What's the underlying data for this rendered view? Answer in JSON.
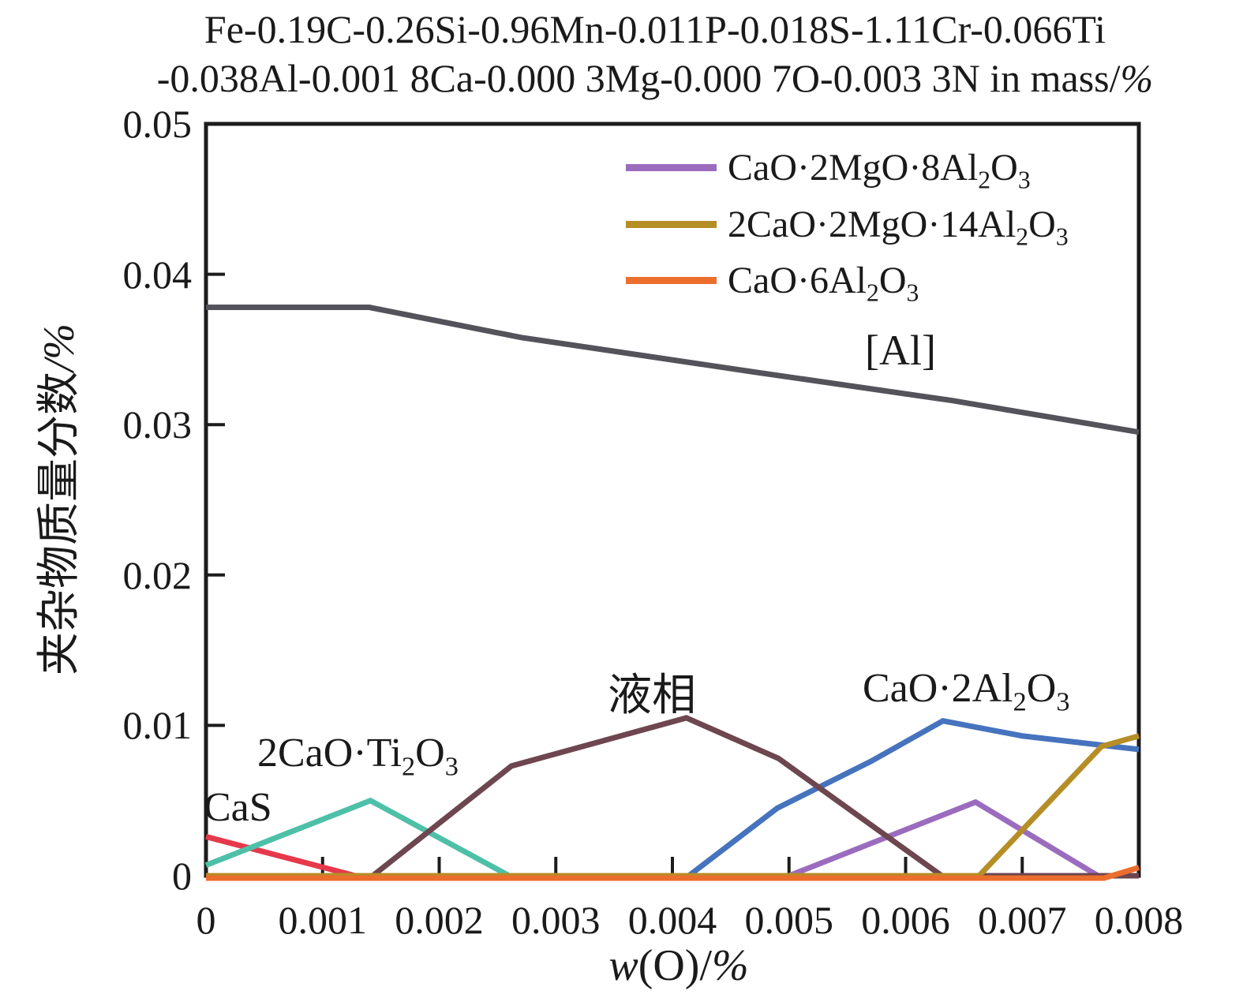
{
  "title": {
    "line1": "Fe-0.19C-0.26Si-0.96Mn-0.011P-0.018S-1.11Cr-0.066Ti",
    "line2_main": "-0.038Al-0.001 8Ca-0.000 3Mg-0.000 7O-0.003 3N in mass/",
    "line2_pct": "%"
  },
  "axes": {
    "xlabel_w": "w",
    "xlabel_mid": "(O)/",
    "xlabel_pct": "%",
    "ylabel_main": "夹杂物质量分数",
    "ylabel_suffix": "/%",
    "xticks": [
      "0",
      "0.001",
      "0.002",
      "0.003",
      "0.004",
      "0.005",
      "0.006",
      "0.007",
      "0.008"
    ],
    "yticks": [
      "0",
      "0.01",
      "0.02",
      "0.03",
      "0.04",
      "0.05"
    ]
  },
  "legend": [
    {
      "label": "CaO·2MgO·8Al_2O_3",
      "color": "#9b6cbe"
    },
    {
      "label": "2CaO·2MgO·14Al_2O_3",
      "color": "#b68e26"
    },
    {
      "label": "CaO·6Al_2O_3",
      "color": "#eb6e2d"
    }
  ],
  "chart_data": {
    "type": "line",
    "title": "Fe-0.19C-0.26Si-0.96Mn-0.011P-0.018S-1.11Cr-0.066Ti-0.038Al-0.001 8Ca-0.000 3Mg-0.000 7O-0.003 3N in mass/%",
    "xlabel": "w(O)/%",
    "ylabel": "夹杂物质量分数/%",
    "xlim": [
      0,
      0.008
    ],
    "ylim": [
      0,
      0.05
    ],
    "grid": false,
    "legend_position": "upper right inside",
    "frame_color": "#1c1c1c",
    "series": [
      {
        "name": "CaO·2MgO·8Al_2O_3",
        "color": "#9b6cbe",
        "points": [
          [
            0,
            0
          ],
          [
            0.005,
            0
          ],
          [
            0.0066,
            0.0049
          ],
          [
            0.00765,
            0
          ],
          [
            0.008,
            0
          ]
        ]
      },
      {
        "name": "CaS",
        "color": "#e6394b",
        "points": [
          [
            0,
            0.0026
          ],
          [
            0.00128,
            0
          ],
          [
            0.008,
            0
          ]
        ]
      },
      {
        "name": "2CaO·Ti_2O_3",
        "color": "#4ec0a8",
        "points": [
          [
            0,
            0.0007
          ],
          [
            0.00141,
            0.005
          ],
          [
            0.0026,
            0
          ],
          [
            0.008,
            0
          ]
        ]
      },
      {
        "name": "CaO·2Al_2O_3",
        "color": "#4673bd",
        "points": [
          [
            0,
            0
          ],
          [
            0.00414,
            0
          ],
          [
            0.0049,
            0.0045
          ],
          [
            0.0057,
            0.0076
          ],
          [
            0.00632,
            0.0103
          ],
          [
            0.007,
            0.0093
          ],
          [
            0.008,
            0.0084
          ]
        ]
      },
      {
        "name": "液相",
        "color": "#6d4650",
        "points": [
          [
            0,
            0
          ],
          [
            0.00143,
            0
          ],
          [
            0.00262,
            0.0073
          ],
          [
            0.00412,
            0.0105
          ],
          [
            0.00491,
            0.0078
          ],
          [
            0.00631,
            0
          ],
          [
            0.008,
            0
          ]
        ]
      },
      {
        "name": "2CaO·2MgO·14Al_2O_3",
        "color": "#b68e26",
        "points": [
          [
            0,
            0
          ],
          [
            0.00663,
            0
          ],
          [
            0.00768,
            0.0086
          ],
          [
            0.008,
            0.0093
          ]
        ]
      },
      {
        "name": "[Al]",
        "color": "#54535b",
        "points": [
          [
            0,
            0.0378
          ],
          [
            0.0014,
            0.0378
          ],
          [
            0.0027,
            0.0358
          ],
          [
            0.0047,
            0.0335
          ],
          [
            0.0064,
            0.0316
          ],
          [
            0.008,
            0.0295
          ]
        ]
      },
      {
        "name": "CaO·6Al_2O_3",
        "color": "#eb6e2d",
        "points": [
          [
            0,
            0
          ],
          [
            0.0077,
            0
          ],
          [
            0.008,
            0.0007
          ]
        ]
      }
    ],
    "annotations": [
      {
        "text": "CaS"
      },
      {
        "text": "2CaO·Ti_2O_3"
      },
      {
        "text": "液相"
      },
      {
        "text": "CaO·2Al_2O_3"
      },
      {
        "text": "[Al]"
      }
    ]
  }
}
